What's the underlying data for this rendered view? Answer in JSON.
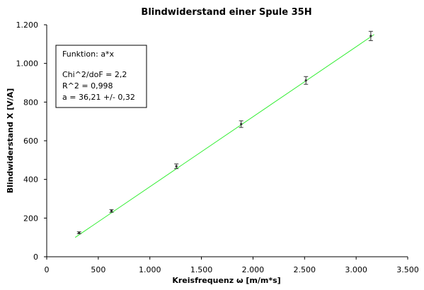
{
  "chart_data": {
    "type": "scatter",
    "title": "Blindwiderstand einer Spule 35H",
    "xlabel": "Kreisfrequenz ω [m/m*s]",
    "ylabel": "Blindwiderstand X [V/A]",
    "xlim": [
      0,
      3500
    ],
    "ylim": [
      0,
      1200
    ],
    "xticks": [
      0,
      500,
      1000,
      1500,
      2000,
      2500,
      3000,
      3500
    ],
    "xtick_labels": [
      "0",
      "500",
      "1.000",
      "1.500",
      "2.000",
      "2.500",
      "3.000",
      "3.500"
    ],
    "yticks": [
      0,
      200,
      400,
      600,
      800,
      1000,
      1200
    ],
    "ytick_labels": [
      "0",
      "200",
      "400",
      "600",
      "800",
      "1.000",
      "1.200"
    ],
    "grid": false,
    "series": [
      {
        "x": [
          314,
          628,
          1257,
          1885,
          2513,
          3142
        ],
        "y": [
          124,
          237,
          468,
          686,
          912,
          1142
        ],
        "yerr": [
          5,
          7,
          12,
          17,
          20,
          24
        ],
        "color": "#333333"
      }
    ],
    "fit": {
      "function": "a*x",
      "a": 36.21,
      "x_range": [
        276,
        3175
      ],
      "color": "#33ee33"
    },
    "annotation": {
      "lines": [
        "Funktion: a*x",
        "Chi^2/doF = 2,2",
        "R^2 = 0,998",
        "a = 36,21 +/- 0,32"
      ],
      "placement": "top-left"
    }
  }
}
